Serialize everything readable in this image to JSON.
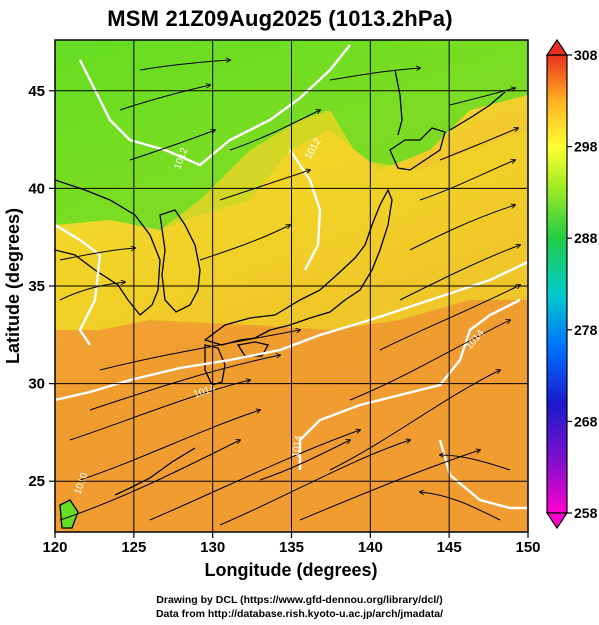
{
  "title": "MSM 21Z09Aug2025 (1013.2hPa)",
  "x_axis": {
    "label": "Longitude (degrees)",
    "ticks": [
      120,
      125,
      130,
      135,
      140,
      145,
      150
    ],
    "range": [
      120,
      150
    ]
  },
  "y_axis": {
    "label": "Latitude  (degrees)",
    "ticks": [
      25,
      30,
      35,
      40,
      45
    ],
    "range": [
      22.4,
      47.6
    ]
  },
  "colorbar": {
    "ticks": [
      308,
      298,
      288,
      278,
      268,
      258
    ],
    "range": [
      258,
      308
    ],
    "stops": [
      "#ff00cc",
      "#1a1acc",
      "#0088ff",
      "#00cccc",
      "#22cc44",
      "#ffff33",
      "#ffb020",
      "#e83020"
    ]
  },
  "contour_labels": [
    "1012",
    "1012",
    "1014",
    "1014",
    "1014",
    "1010"
  ],
  "credits": [
    "Drawing by DCL (https://www.gfd-dennou.org/library/dcl/)",
    "Data from http://database.rish.kyoto-u.ac.jp/arch/jmadata/"
  ],
  "colors": {
    "land_outline": "#000000",
    "contour": "#ffffff",
    "warm": "#f09a30",
    "mild": "#f0d020",
    "cool": "#66dd22"
  }
}
